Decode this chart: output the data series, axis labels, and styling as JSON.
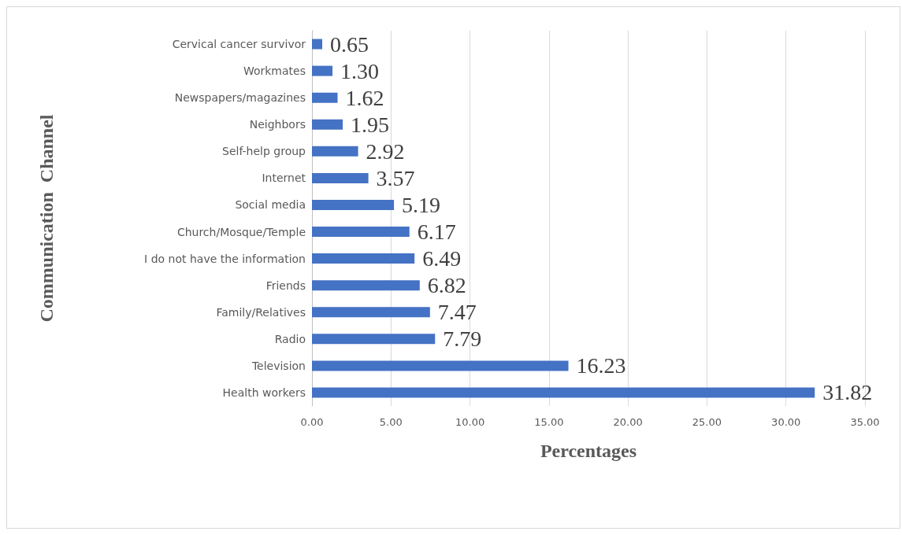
{
  "chart_data": {
    "type": "bar",
    "orientation": "horizontal",
    "xlabel": "Percentages",
    "ylabel": "Communication  Channel",
    "categories": [
      "Cervical cancer survivor",
      "Workmates",
      "Newspapers/magazines",
      "Neighbors",
      "Self-help group",
      "Internet",
      "Social media",
      "Church/Mosque/Temple",
      "I do not have the information",
      "Friends",
      "Family/Relatives",
      "Radio",
      "Television",
      "Health workers"
    ],
    "values": [
      0.65,
      1.3,
      1.62,
      1.95,
      2.92,
      3.57,
      5.19,
      6.17,
      6.49,
      6.82,
      7.47,
      7.79,
      16.23,
      31.82
    ],
    "value_labels": [
      "0.65",
      "1.30",
      "1.62",
      "1.95",
      "2.92",
      "3.57",
      "5.19",
      "6.17",
      "6.49",
      "6.82",
      "7.47",
      "7.79",
      "16.23",
      "31.82"
    ],
    "color": "#4472c4",
    "xlim": [
      0,
      35
    ],
    "xticks": [
      {
        "value": 0,
        "label": "0.00"
      },
      {
        "value": 5,
        "label": "5.00"
      },
      {
        "value": 10,
        "label": "10.00"
      },
      {
        "value": 15,
        "label": "15.00"
      },
      {
        "value": 20,
        "label": "20.00"
      },
      {
        "value": 25,
        "label": "25.00"
      },
      {
        "value": 30,
        "label": "30.00"
      },
      {
        "value": 35,
        "label": "35.00"
      }
    ],
    "grid": "x"
  }
}
